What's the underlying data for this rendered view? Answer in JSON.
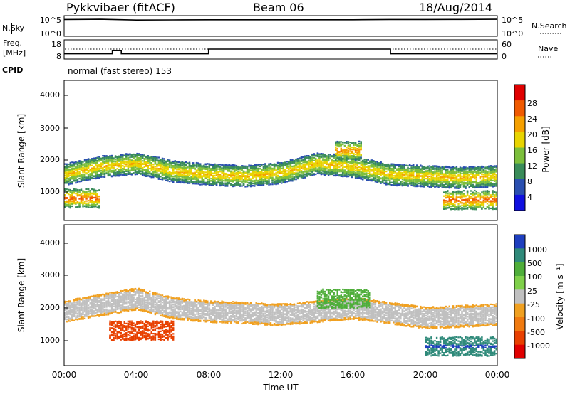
{
  "header": {
    "title": "Pykkvibaer (fitACF)",
    "beam": "Beam 06",
    "date": "18/Aug/2014"
  },
  "nsky_panel": {
    "left_label": "N.Sky",
    "right_label": "N.Search",
    "left_ticks": [
      "10^5",
      "10^0"
    ],
    "right_ticks": [
      "10^5",
      "10^0"
    ]
  },
  "freq_panel": {
    "left_label_1": "Freq.",
    "left_label_2": "[MHz]",
    "right_label": "Nave",
    "left_ticks": [
      "18",
      "8"
    ],
    "right_ticks": [
      "60",
      "0"
    ]
  },
  "cpid": {
    "label": "CPID",
    "mode_text": "normal (fast stereo) 153"
  },
  "power_panel": {
    "ylabel": "Slant Range [km]",
    "yticks": [
      "4000",
      "3000",
      "2000",
      "1000"
    ],
    "colorbar_label": "Power [dB]",
    "colorbar_ticks": [
      "28",
      "24",
      "20",
      "16",
      "12",
      "8",
      "4"
    ],
    "colorbar_colors": [
      "#e00000",
      "#f05a00",
      "#f5a000",
      "#e8d400",
      "#7cbf3c",
      "#3a8c5a",
      "#2a4fb0",
      "#1010e0"
    ]
  },
  "velocity_panel": {
    "ylabel": "Slant Range [km]",
    "yticks": [
      "4000",
      "3000",
      "2000",
      "1000"
    ],
    "colorbar_label": "Velocity [m s⁻¹]",
    "colorbar_ticks": [
      "1000",
      "500",
      "100",
      "25",
      "-25",
      "-100",
      "-500",
      "-1000"
    ],
    "colorbar_colors": [
      "#1e3fbf",
      "#2f8a7a",
      "#4fae3a",
      "#7fd04a",
      "#c0c0c0",
      "#f0a020",
      "#f07a10",
      "#e84000",
      "#e00000"
    ]
  },
  "xaxis": {
    "label": "Time UT",
    "ticks": [
      "00:00",
      "04:00",
      "08:00",
      "12:00",
      "16:00",
      "20:00",
      "00:00"
    ]
  },
  "chart_data": [
    {
      "type": "line",
      "name": "N.Sky / N.Search",
      "x": [
        "00:00",
        "02:00",
        "04:00",
        "06:00",
        "08:00",
        "10:00",
        "12:00",
        "14:00",
        "16:00",
        "18:00",
        "20:00",
        "22:00",
        "24:00"
      ],
      "series": [
        {
          "values": [
            30000,
            35000,
            20000,
            22000,
            25000,
            25000,
            25000,
            25000,
            25000,
            30000,
            30000,
            32000,
            35000
          ]
        }
      ],
      "ylim": [
        1,
        100000
      ],
      "yscale": "log"
    },
    {
      "type": "line",
      "name": "Frequency",
      "x": [
        "00:00",
        "02:00",
        "02:40",
        "03:10",
        "04:00",
        "06:00",
        "07:55",
        "08:00",
        "12:00",
        "16:00",
        "18:00",
        "18:05",
        "20:00",
        "24:00"
      ],
      "series": [
        {
          "values": [
            10,
            10,
            12,
            10,
            10,
            10,
            10,
            13,
            13,
            13,
            13,
            10,
            10,
            10
          ]
        }
      ],
      "ylim": [
        8,
        18
      ],
      "reference_line": 14
    },
    {
      "type": "heatmap",
      "name": "Power",
      "xlabel": "Time UT",
      "ylabel": "Slant Range [km]",
      "xlim": [
        "00:00",
        "24:00"
      ],
      "ylim": [
        180,
        4600
      ],
      "clim": [
        0,
        30
      ],
      "colorbar_ticks": [
        4,
        8,
        12,
        16,
        20,
        24,
        28
      ],
      "features": [
        {
          "time_start": "00:00",
          "time_end": "24:00",
          "range_center_km": [
            1650,
            1900,
            2000,
            1750,
            1650,
            1600,
            1700,
            2000,
            1900,
            1650,
            1600,
            1550,
            1600
          ],
          "power_db": 20
        },
        {
          "time_start": "00:00",
          "time_end": "02:00",
          "range_center_km": 900,
          "power_db": 26
        },
        {
          "time_start": "21:00",
          "time_end": "24:00",
          "range_center_km": 850,
          "power_db": 26
        },
        {
          "time_start": "15:00",
          "time_end": "16:30",
          "range_center_km": 2400,
          "power_db": 24
        }
      ]
    },
    {
      "type": "heatmap",
      "name": "Velocity",
      "xlabel": "Time UT",
      "ylabel": "Slant Range [km]",
      "xlim": [
        "00:00",
        "24:00"
      ],
      "ylim": [
        180,
        4600
      ],
      "colorbar_ticks": [
        -1000,
        -500,
        -100,
        -25,
        25,
        100,
        500,
        1000
      ],
      "features": [
        {
          "time_start": "00:00",
          "time_end": "24:00",
          "range_center_km": [
            1900,
            2100,
            2300,
            2000,
            1900,
            1850,
            1800,
            1900,
            2000,
            1850,
            1700,
            1750,
            1800
          ],
          "velocity_ms": 0
        },
        {
          "time_start": "02:30",
          "time_end": "06:00",
          "range_center_km": 1300,
          "velocity_ms": -500
        },
        {
          "time_start": "14:00",
          "time_end": "17:00",
          "range_center_km": 2300,
          "velocity_ms": 300
        },
        {
          "time_start": "20:00",
          "time_end": "24:00",
          "range_center_km": 800,
          "velocity_ms": 800
        }
      ]
    }
  ]
}
